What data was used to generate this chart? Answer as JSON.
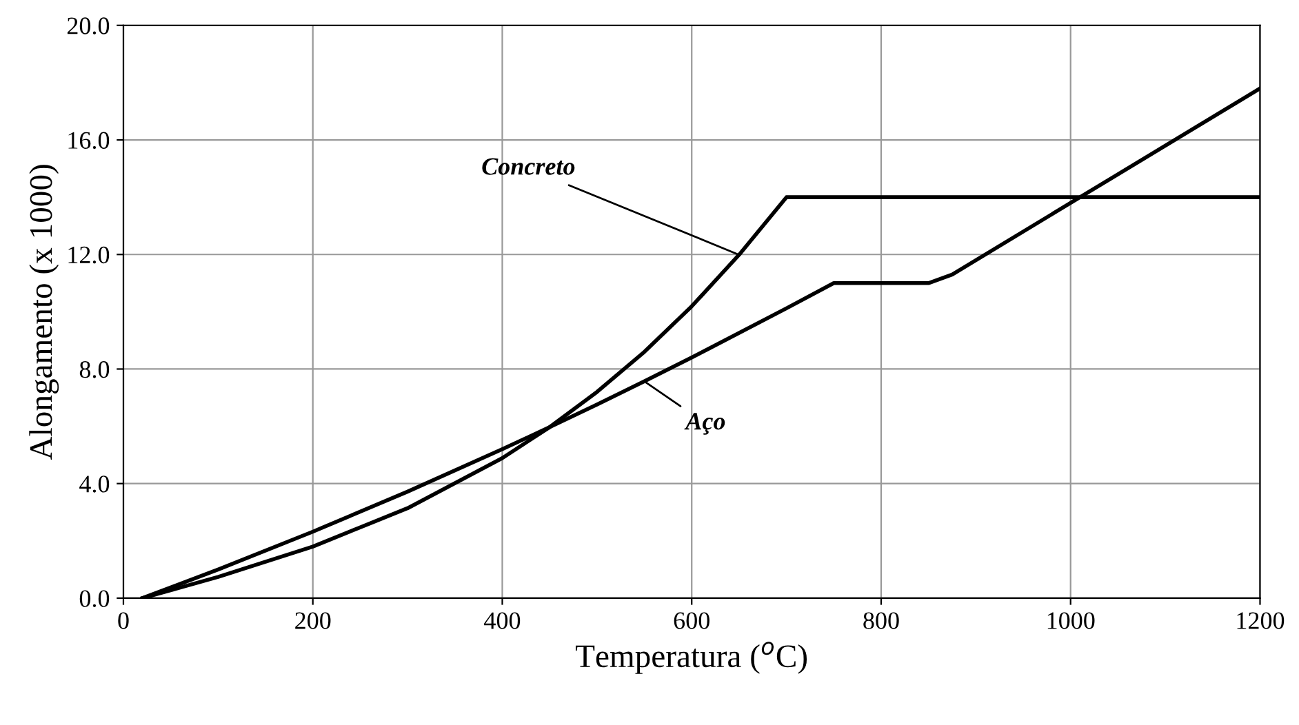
{
  "chart_data": {
    "type": "line",
    "xlabel": "Temperatura ($^{o}$C)",
    "ylabel": "Alongamento (x 1000)",
    "series": [
      {
        "name": "Concreto",
        "color": "#000000",
        "x": [
          20,
          100,
          200,
          300,
          400,
          450,
          500,
          550,
          600,
          650,
          700,
          1200
        ],
        "values": [
          0.0,
          0.74,
          1.8,
          3.14,
          4.89,
          5.97,
          7.2,
          8.6,
          10.19,
          11.99,
          14.0,
          14.0
        ]
      },
      {
        "name": "Aço",
        "color": "#000000",
        "x": [
          20,
          100,
          200,
          300,
          400,
          450,
          500,
          550,
          600,
          700,
          750,
          850,
          875,
          1200
        ],
        "values": [
          0.0,
          1.0,
          2.32,
          3.72,
          5.2,
          5.97,
          6.76,
          7.57,
          8.4,
          10.12,
          11.0,
          11.0,
          11.3,
          17.8
        ]
      }
    ],
    "xlim": [
      0,
      1200
    ],
    "xticks": [
      0,
      200,
      400,
      600,
      800,
      1000,
      1200
    ],
    "ylim": [
      0,
      20
    ],
    "yticks": [
      {
        "value": 0,
        "label": "0.0"
      },
      {
        "value": 4,
        "label": "4.0"
      },
      {
        "value": 8,
        "label": "8.0"
      },
      {
        "value": 12,
        "label": "12.0"
      },
      {
        "value": 16,
        "label": "16.0"
      },
      {
        "value": 20,
        "label": "20.0"
      }
    ],
    "grid": true,
    "marker": "none",
    "line_style": "solid"
  }
}
